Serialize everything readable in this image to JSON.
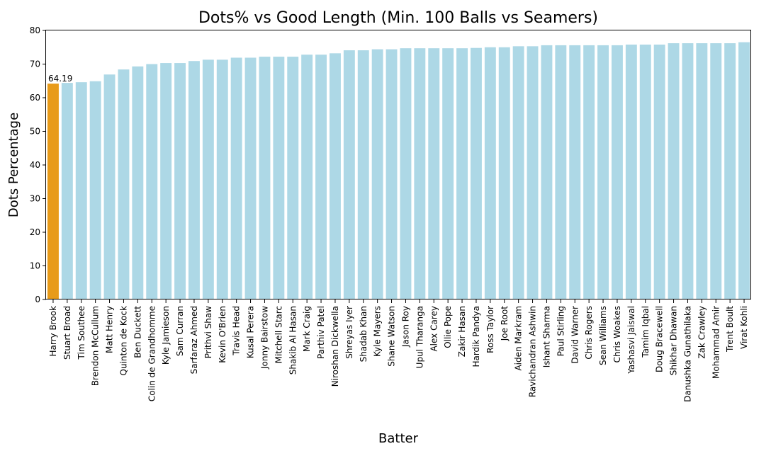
{
  "chart_data": {
    "type": "bar",
    "title": "Dots% vs Good Length (Min. 100 Balls vs Seamers)",
    "xlabel": "Batter",
    "ylabel": "Dots Percentage",
    "ylim": [
      0,
      80
    ],
    "yticks": [
      0,
      10,
      20,
      30,
      40,
      50,
      60,
      70,
      80
    ],
    "grid": false,
    "colors": {
      "highlight": "#e89b1a",
      "default": "#add8e6",
      "axis": "#000000"
    },
    "highlight_index": 0,
    "data_labels": [
      {
        "index": 0,
        "text": "64.19"
      }
    ],
    "categories": [
      "Harry Brook",
      "Stuart Broad",
      "Tim Southee",
      "Brendon McCullum",
      "Matt Henry",
      "Quinton de Kock",
      "Ben Duckett",
      "Colin de Grandhomme",
      "Kyle Jamieson",
      "Sam Curran",
      "Sarfaraz Ahmed",
      "Prithvi Shaw",
      "Kevin O'Brien",
      "Travis Head",
      "Kusal Perera",
      "Jonny Bairstow",
      "Mitchell Starc",
      "Shakib Al Hasan",
      "Mark Craig",
      "Parthiv Patel",
      "Niroshan Dickwella",
      "Shreyas Iyer",
      "Shadab Khan",
      "Kyle Mayers",
      "Shane Watson",
      "Jason Roy",
      "Upul Tharanga",
      "Alex Carey",
      "Ollie Pope",
      "Zakir Hasan",
      "Hardik Pandya",
      "Ross Taylor",
      "Joe Root",
      "Aiden Markram",
      "Ravichandran Ashwin",
      "Ishant Sharma",
      "Paul Stirling",
      "David Warner",
      "Chris Rogers",
      "Sean Williams",
      "Chris Woakes",
      "Yashasvi Jaiswal",
      "Tamim Iqbal",
      "Doug Bracewell",
      "Shikhar Dhawan",
      "Danushka Gunathilaka",
      "Zak Crawley",
      "Mohammad Amir",
      "Trent Boult",
      "Virat Kohli"
    ],
    "values": [
      64.19,
      64.4,
      64.6,
      64.9,
      66.9,
      68.4,
      69.3,
      70.0,
      70.3,
      70.3,
      70.9,
      71.3,
      71.3,
      71.9,
      71.9,
      72.2,
      72.2,
      72.2,
      72.8,
      72.8,
      73.2,
      74.1,
      74.1,
      74.4,
      74.4,
      74.7,
      74.7,
      74.7,
      74.7,
      74.7,
      74.8,
      75.0,
      75.0,
      75.3,
      75.3,
      75.6,
      75.6,
      75.6,
      75.6,
      75.6,
      75.6,
      75.8,
      75.8,
      75.8,
      76.2,
      76.2,
      76.2,
      76.2,
      76.2,
      76.5
    ]
  }
}
